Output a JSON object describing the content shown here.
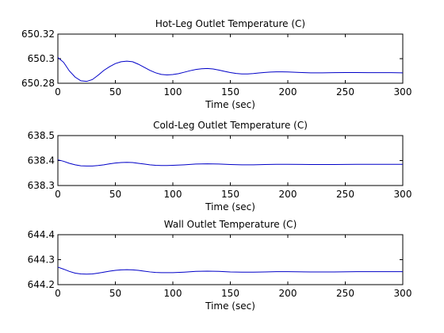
{
  "chart_data": [
    {
      "type": "line",
      "title": "Hot-Leg Outlet Temperature (C)",
      "xlabel": "Time (sec)",
      "ylabel": "",
      "xlim": [
        0,
        300
      ],
      "ylim": [
        650.28,
        650.32
      ],
      "xticks": [
        0,
        50,
        100,
        150,
        200,
        250,
        300
      ],
      "xtick_labels": [
        "0",
        "50",
        "100",
        "150",
        "200",
        "250",
        "300"
      ],
      "yticks": [
        650.28,
        650.3,
        650.32
      ],
      "ytick_labels": [
        "650.28",
        "650.3",
        "650.32"
      ],
      "grid": false,
      "series": [
        {
          "x": [
            0,
            5,
            10,
            15,
            20,
            25,
            30,
            35,
            40,
            45,
            50,
            55,
            60,
            65,
            70,
            75,
            80,
            85,
            90,
            95,
            100,
            105,
            110,
            115,
            120,
            125,
            130,
            135,
            140,
            145,
            150,
            155,
            160,
            165,
            170,
            175,
            180,
            185,
            190,
            195,
            200,
            210,
            220,
            230,
            240,
            250,
            260,
            270,
            280,
            290,
            300
          ],
          "y": [
            650.301,
            650.297,
            650.29,
            650.285,
            650.282,
            650.2815,
            650.283,
            650.2865,
            650.2905,
            650.2935,
            650.296,
            650.2975,
            650.298,
            650.2975,
            650.2955,
            650.293,
            650.2905,
            650.2885,
            650.2872,
            650.2868,
            650.2871,
            650.2878,
            650.289,
            650.2902,
            650.2912,
            650.2918,
            650.292,
            650.2916,
            650.2907,
            650.2897,
            650.2887,
            650.288,
            650.2876,
            650.2876,
            650.2879,
            650.2884,
            650.2888,
            650.2891,
            650.2893,
            650.2893,
            650.2892,
            650.2888,
            650.2885,
            650.2885,
            650.2886,
            650.2887,
            650.2887,
            650.2886,
            650.2886,
            650.2886,
            650.2885
          ]
        }
      ]
    },
    {
      "type": "line",
      "title": "Cold-Leg Outlet Temperature (C)",
      "xlabel": "Time (sec)",
      "ylabel": "",
      "xlim": [
        0,
        300
      ],
      "ylim": [
        638.3,
        638.5
      ],
      "xticks": [
        0,
        50,
        100,
        150,
        200,
        250,
        300
      ],
      "xtick_labels": [
        "0",
        "50",
        "100",
        "150",
        "200",
        "250",
        "300"
      ],
      "yticks": [
        638.3,
        638.4,
        638.5
      ],
      "ytick_labels": [
        "638.3",
        "638.4",
        "638.5"
      ],
      "grid": false,
      "series": [
        {
          "x": [
            0,
            5,
            10,
            15,
            20,
            25,
            30,
            35,
            40,
            45,
            50,
            55,
            60,
            65,
            70,
            75,
            80,
            85,
            90,
            95,
            100,
            110,
            120,
            130,
            140,
            150,
            160,
            170,
            180,
            190,
            200,
            220,
            240,
            260,
            280,
            300
          ],
          "y": [
            638.403,
            638.397,
            638.389,
            638.383,
            638.379,
            638.378,
            638.378,
            638.38,
            638.383,
            638.387,
            638.39,
            638.392,
            638.393,
            638.392,
            638.389,
            638.386,
            638.383,
            638.381,
            638.38,
            638.38,
            638.381,
            638.383,
            638.386,
            638.387,
            638.386,
            638.384,
            638.383,
            638.383,
            638.384,
            638.385,
            638.385,
            638.384,
            638.384,
            638.385,
            638.385,
            638.385
          ]
        }
      ]
    },
    {
      "type": "line",
      "title": "Wall Outlet Temperature (C)",
      "xlabel": "Time (sec)",
      "ylabel": "",
      "xlim": [
        0,
        300
      ],
      "ylim": [
        644.2,
        644.4
      ],
      "xticks": [
        0,
        50,
        100,
        150,
        200,
        250,
        300
      ],
      "xtick_labels": [
        "0",
        "50",
        "100",
        "150",
        "200",
        "250",
        "300"
      ],
      "yticks": [
        644.2,
        644.3,
        644.4
      ],
      "ytick_labels": [
        "644.2",
        "644.3",
        "644.4"
      ],
      "grid": false,
      "series": [
        {
          "x": [
            0,
            5,
            10,
            15,
            20,
            25,
            30,
            35,
            40,
            45,
            50,
            55,
            60,
            65,
            70,
            75,
            80,
            85,
            90,
            95,
            100,
            110,
            120,
            130,
            140,
            150,
            160,
            170,
            180,
            190,
            200,
            220,
            240,
            260,
            280,
            300
          ],
          "y": [
            644.27,
            644.262,
            644.253,
            644.246,
            644.243,
            644.242,
            644.243,
            644.246,
            644.25,
            644.254,
            644.257,
            644.259,
            644.26,
            644.259,
            644.257,
            644.254,
            644.251,
            644.249,
            644.248,
            644.248,
            644.248,
            644.25,
            644.253,
            644.254,
            644.253,
            644.251,
            644.25,
            644.25,
            644.251,
            644.252,
            644.252,
            644.251,
            644.251,
            644.252,
            644.252,
            644.252
          ]
        }
      ]
    }
  ]
}
